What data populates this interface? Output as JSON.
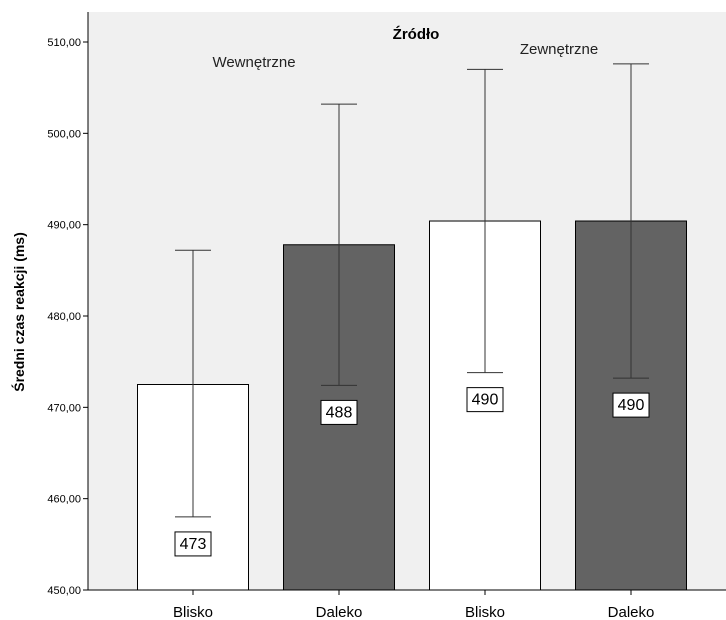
{
  "chart_data": {
    "type": "bar",
    "title": "Źródło",
    "ylabel": "Średni czas reakcji (ms)",
    "xlabel": "",
    "ylim": [
      450,
      510
    ],
    "yticks": [
      450,
      460,
      470,
      480,
      490,
      500,
      510
    ],
    "ytick_labels": [
      "450,00",
      "460,00",
      "470,00",
      "480,00",
      "490,00",
      "500,00",
      "510,00"
    ],
    "categories": [
      "Blisko",
      "Daleko",
      "Blisko",
      "Daleko"
    ],
    "groups": [
      "Wewnętrzne",
      "Wewnętrzne",
      "Zewnętrzne",
      "Zewnętrzne"
    ],
    "group_labels": [
      "Wewnętrzne",
      "Zewnętrzne"
    ],
    "values": [
      472.5,
      487.8,
      490.4,
      490.4
    ],
    "data_labels": [
      "473",
      "488",
      "490",
      "490"
    ],
    "error_low": [
      458.0,
      472.4,
      473.8,
      473.2
    ],
    "error_high": [
      487.2,
      503.2,
      507.0,
      507.6
    ],
    "bar_colors": [
      "#ffffff",
      "#636363",
      "#ffffff",
      "#636363"
    ],
    "plot_background": "#f0f0f0",
    "grid": false,
    "legend": "none"
  }
}
